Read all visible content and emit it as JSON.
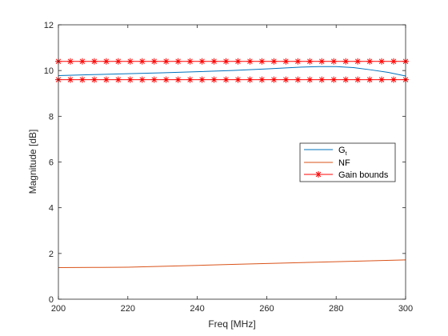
{
  "chart_data": {
    "type": "line",
    "title": "",
    "xlabel": "Freq [MHz]",
    "ylabel": "Magnitude [dB]",
    "xlim": [
      200,
      300
    ],
    "ylim": [
      0,
      12
    ],
    "xticks": [
      200,
      220,
      240,
      260,
      280,
      300
    ],
    "yticks": [
      0,
      2,
      4,
      6,
      8,
      10,
      12
    ],
    "grid": false,
    "legend_position": "right",
    "series": [
      {
        "name": "Gt",
        "legend_main": "G",
        "legend_sub": "t",
        "color": "#0072BD",
        "style": "line",
        "x": [
          200,
          210,
          220,
          230,
          240,
          250,
          260,
          265,
          270,
          275,
          280,
          285,
          290,
          295,
          300
        ],
        "y": [
          9.78,
          9.82,
          9.86,
          9.9,
          9.95,
          10.0,
          10.07,
          10.11,
          10.15,
          10.17,
          10.17,
          10.13,
          10.03,
          9.92,
          9.76
        ]
      },
      {
        "name": "NF",
        "color": "#D95319",
        "style": "line",
        "x": [
          200,
          210,
          220,
          230,
          240,
          250,
          260,
          270,
          280,
          290,
          300
        ],
        "y": [
          1.38,
          1.39,
          1.4,
          1.44,
          1.48,
          1.52,
          1.56,
          1.6,
          1.64,
          1.68,
          1.72
        ]
      },
      {
        "name": "Gain bounds",
        "color": "#FF0000",
        "style": "line-marker",
        "marker": "asterisk",
        "x": [
          200,
          203.45,
          206.9,
          210.34,
          213.79,
          217.24,
          220.69,
          224.14,
          227.59,
          231.03,
          234.48,
          237.93,
          241.38,
          244.83,
          248.28,
          251.72,
          255.17,
          258.62,
          262.07,
          265.52,
          268.97,
          272.41,
          275.86,
          279.31,
          282.76,
          286.21,
          289.66,
          293.1,
          296.55,
          300
        ],
        "y_upper": 10.4,
        "y_lower": 9.6
      }
    ]
  }
}
